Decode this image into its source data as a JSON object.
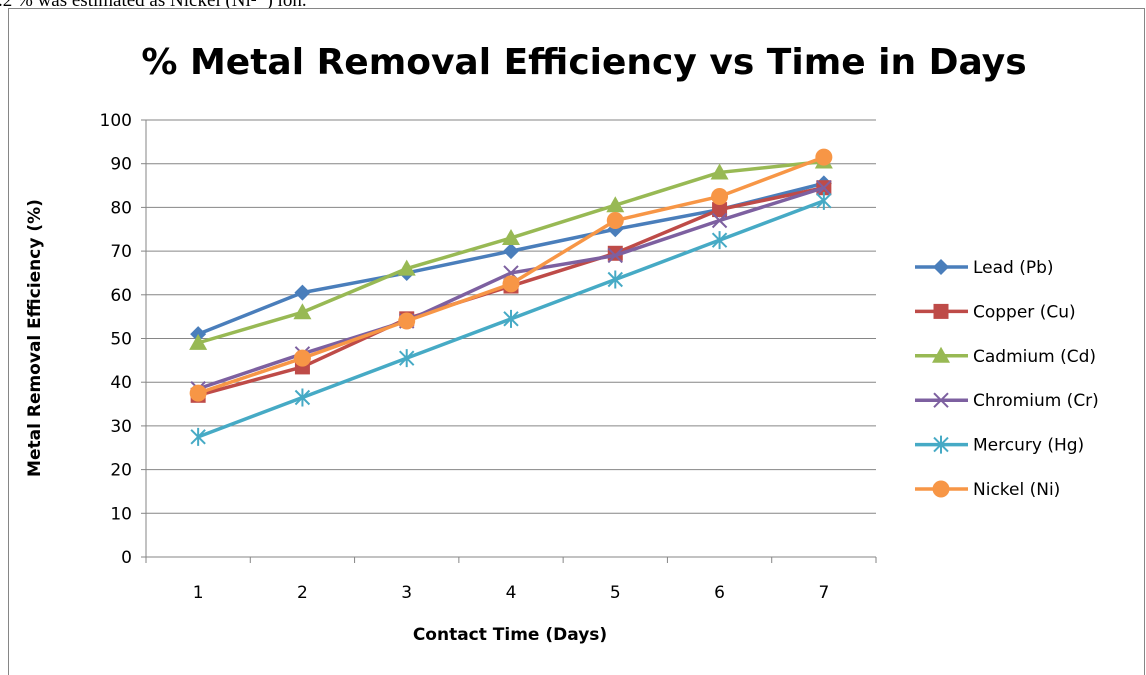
{
  "caption": ".2 % was estimated as Nickel (Ni²⁺) ion.",
  "chart_data": {
    "type": "line",
    "title": "% Metal Removal Efficiency vs Time in Days",
    "x_label": "Contact Time (Days)",
    "y_label": "Metal Removal Efficiency (%)",
    "categories": [
      "1",
      "2",
      "3",
      "4",
      "5",
      "6",
      "7"
    ],
    "ylim": [
      0,
      100
    ],
    "yticks": [
      0,
      10,
      20,
      30,
      40,
      50,
      60,
      70,
      80,
      90,
      100
    ],
    "grid": true,
    "legend": "right",
    "series": [
      {
        "name": "Lead (Pb)",
        "color": "#4a7ebb",
        "marker": "diamond",
        "values": [
          51,
          60.5,
          65,
          70,
          75,
          79.5,
          85.5
        ]
      },
      {
        "name": "Copper (Cu)",
        "color": "#be4b48",
        "marker": "square",
        "values": [
          37,
          43.5,
          54.5,
          62,
          69.5,
          79.5,
          84.5
        ]
      },
      {
        "name": "Cadmium (Cd)",
        "color": "#98b954",
        "marker": "triangle",
        "values": [
          49,
          56,
          66,
          73,
          80.5,
          88,
          90.5
        ]
      },
      {
        "name": "Chromium (Cr)",
        "color": "#7d60a0",
        "marker": "x",
        "values": [
          38.5,
          46.5,
          54,
          65,
          69,
          77,
          84.5
        ]
      },
      {
        "name": "Mercury (Hg)",
        "color": "#46aac5",
        "marker": "star",
        "values": [
          27.5,
          36.5,
          45.5,
          54.5,
          63.5,
          72.5,
          81.5
        ]
      },
      {
        "name": "Nickel (Ni)",
        "color": "#f79646",
        "marker": "circle",
        "values": [
          37.5,
          45.5,
          54,
          62.5,
          77,
          82.5,
          91.5
        ]
      }
    ]
  }
}
